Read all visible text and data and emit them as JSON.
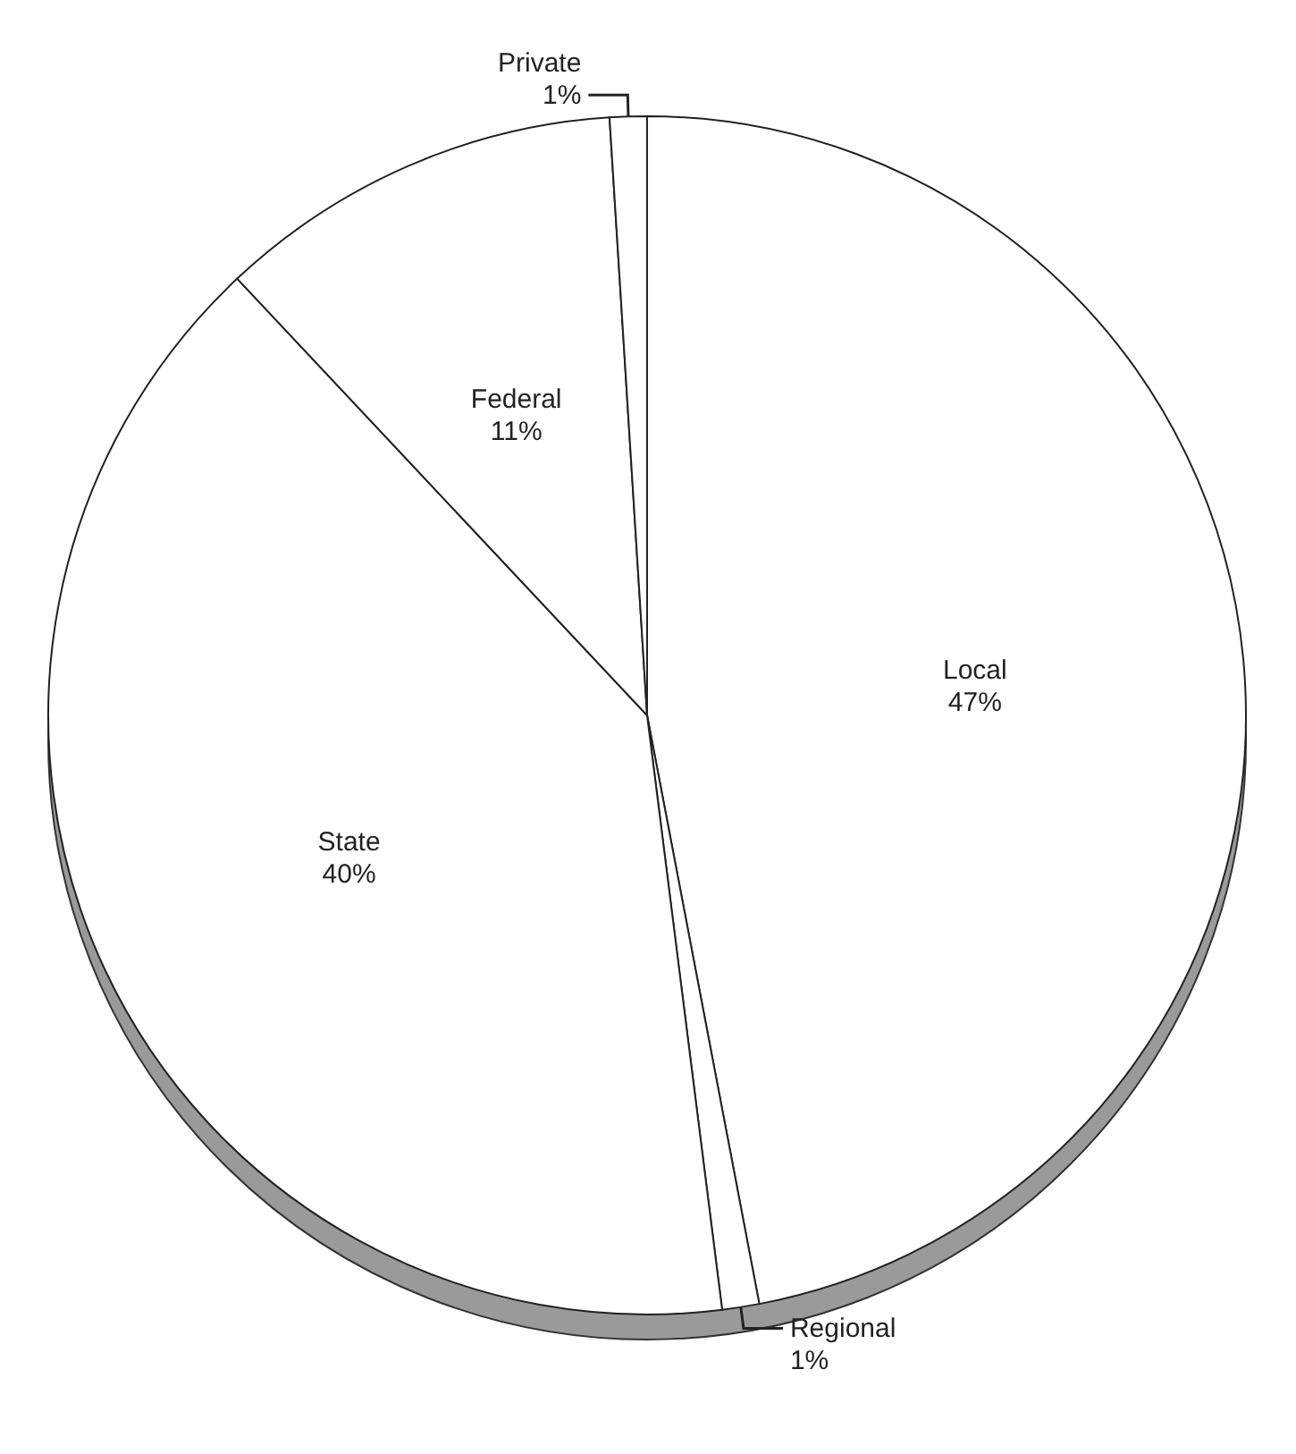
{
  "chart_data": {
    "type": "pie",
    "categories": [
      "Local",
      "Regional",
      "State",
      "Federal",
      "Private"
    ],
    "values": [
      47,
      1,
      40,
      11,
      1
    ],
    "value_labels": [
      "47%",
      "1%",
      "40%",
      "11%",
      "1%"
    ],
    "colors": [
      "#ffffff",
      "#ffffff",
      "#ffffff",
      "#ffffff",
      "#ffffff"
    ]
  }
}
